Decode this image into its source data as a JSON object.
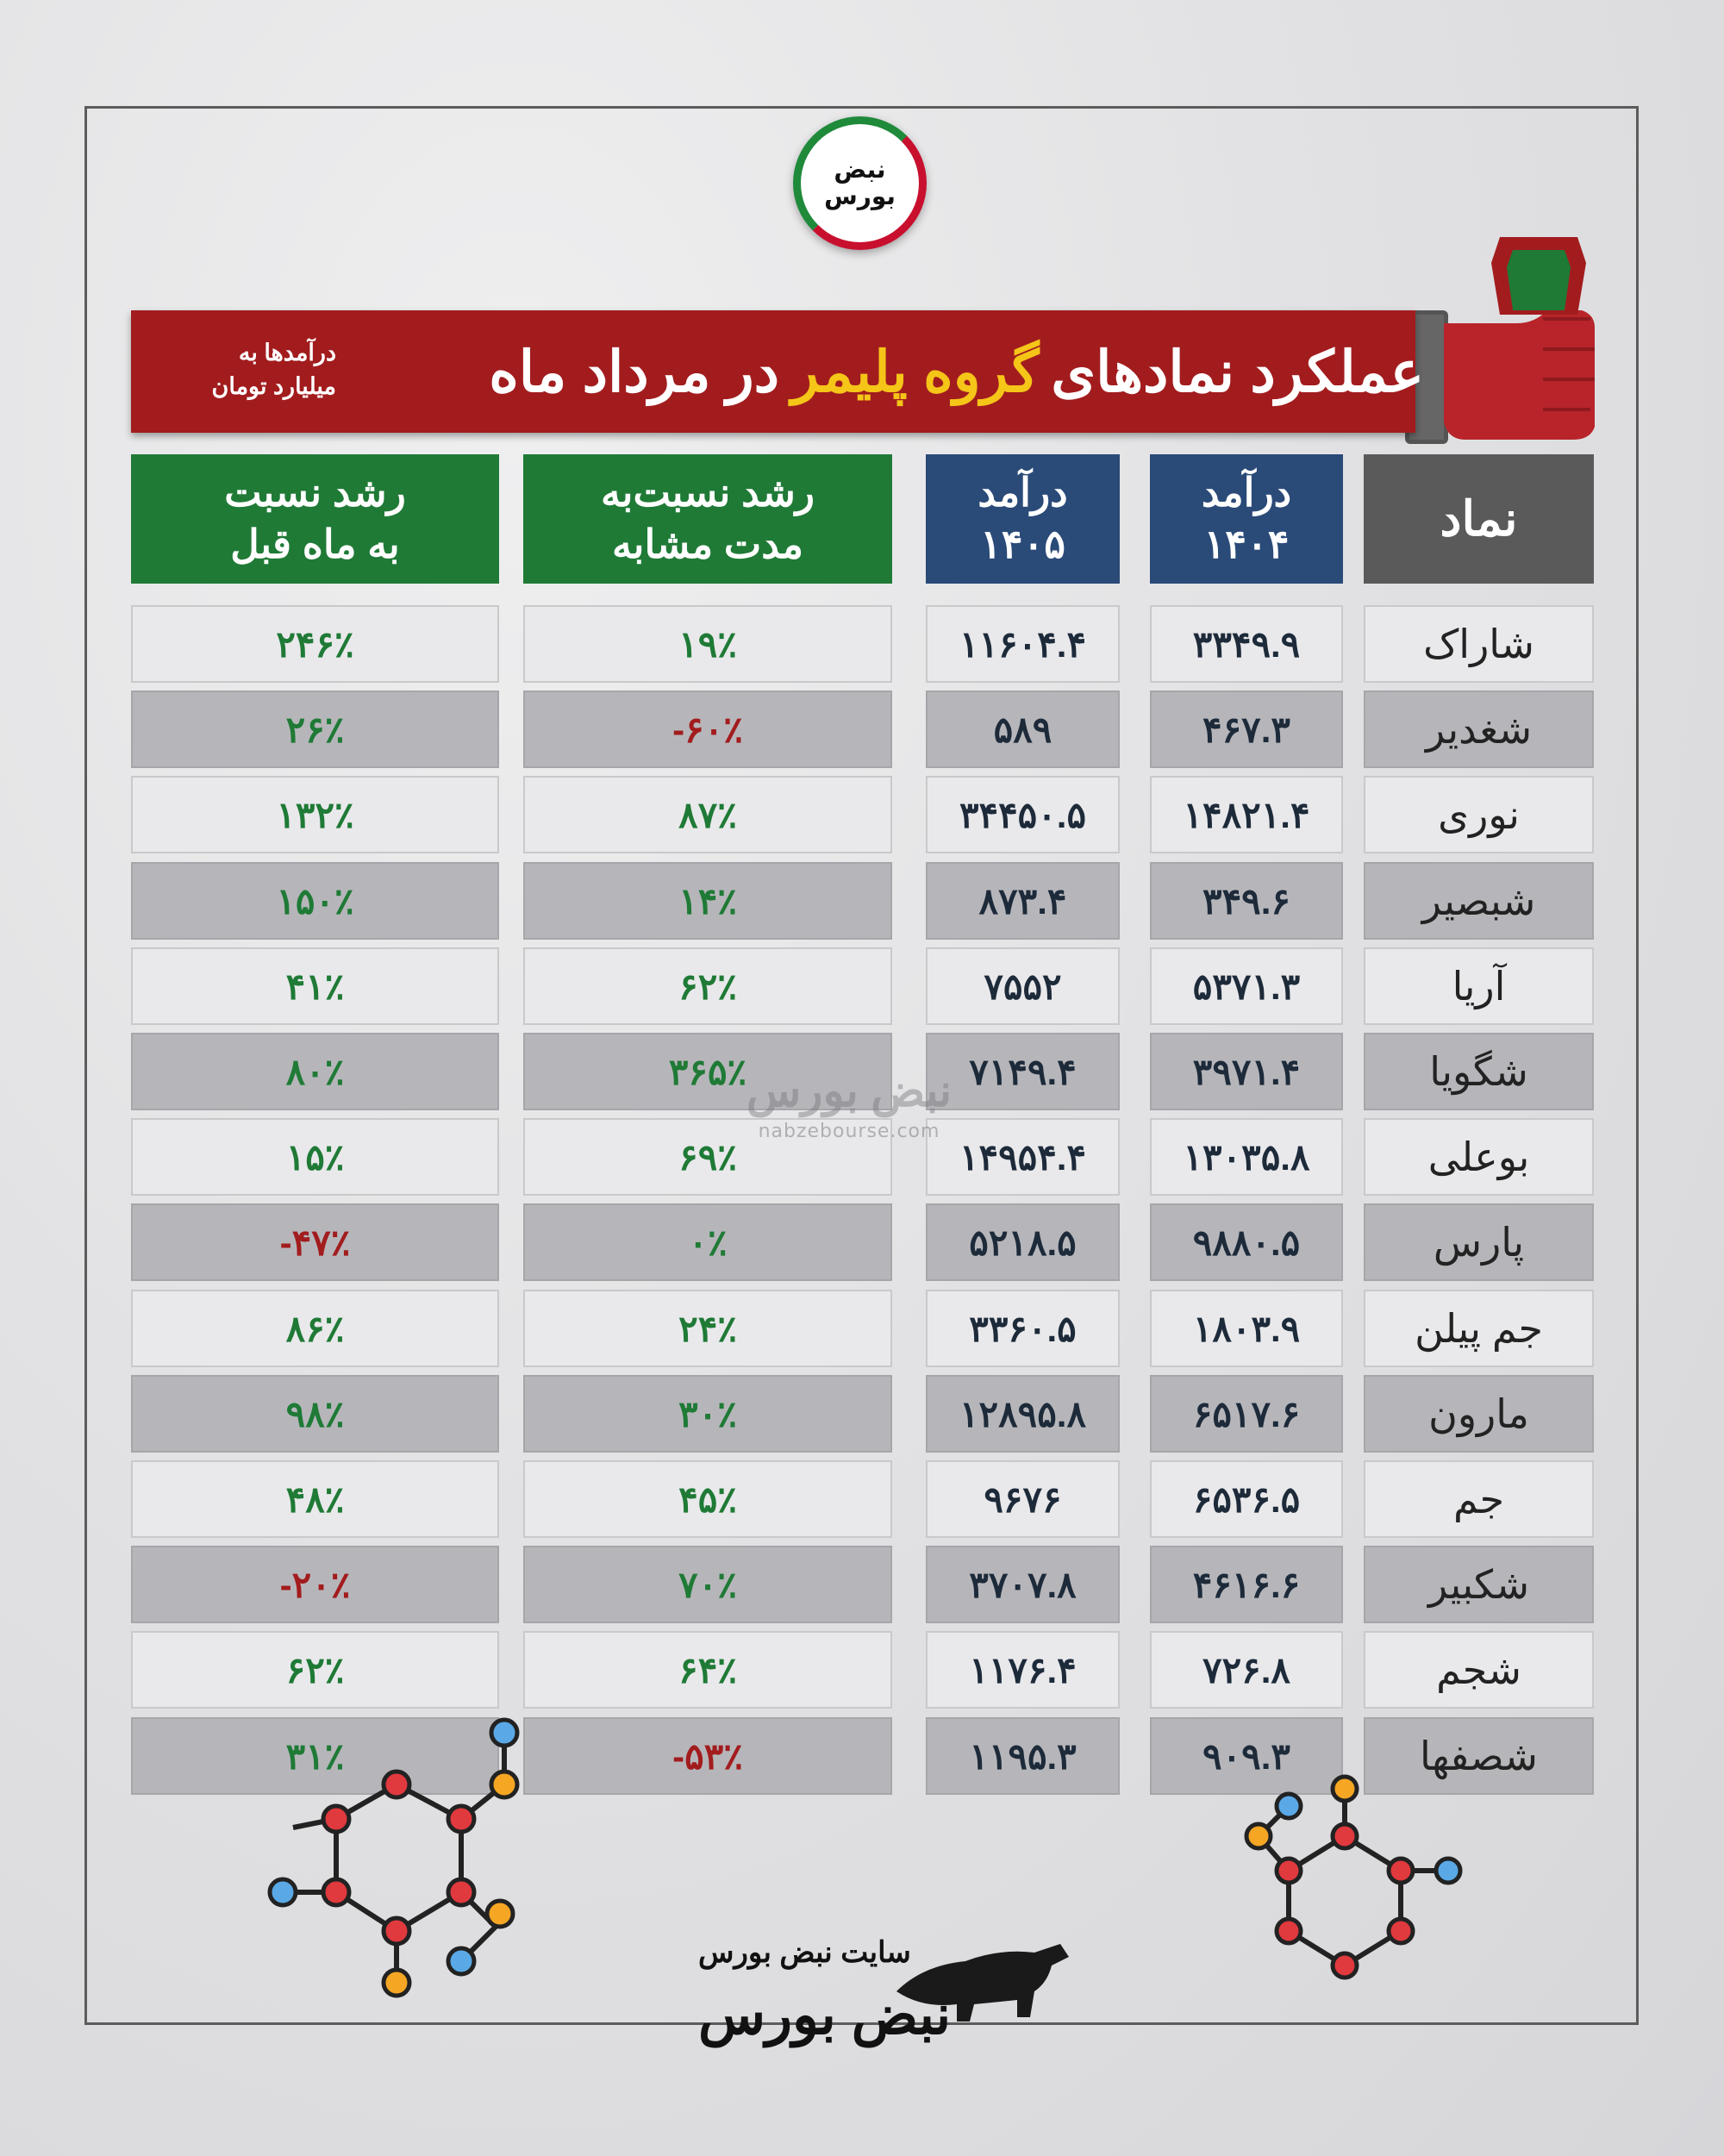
{
  "logo": {
    "line1": "نبض",
    "line2": "بورس"
  },
  "banner": {
    "unit_line1": "درآمدها به",
    "unit_line2": "میلیارد تومان",
    "title_start": "عملکرد نمادهای",
    "title_highlight": "گروه پلیمر",
    "title_end": "در مرداد ماه"
  },
  "headers": {
    "mom_line1": "رشد نسبت",
    "mom_line2": "به ماه قبل",
    "yoy_line1": "رشد نسبت‌به",
    "yoy_line2": "مدت مشابه",
    "rev1405_line1": "درآمد",
    "rev1405_line2": "۱۴۰۵",
    "rev1404_line1": "درآمد",
    "rev1404_line2": "۱۴۰۴",
    "symbol": "نماد"
  },
  "rows": [
    {
      "symbol": "شاراک",
      "rev1404": "۳۳۴۹.۹",
      "rev1405": "۱۱۶۰۴.۴",
      "yoy": "۱۹٪",
      "mom": "۲۴۶٪",
      "yoy_neg": false,
      "mom_neg": false
    },
    {
      "symbol": "شغدیر",
      "rev1404": "۴۶۷.۳",
      "rev1405": "۵۸۹",
      "yoy": "-۶۰٪",
      "mom": "۲۶٪",
      "yoy_neg": true,
      "mom_neg": false
    },
    {
      "symbol": "نوری",
      "rev1404": "۱۴۸۲۱.۴",
      "rev1405": "۳۴۴۵۰.۵",
      "yoy": "۸۷٪",
      "mom": "۱۳۲٪",
      "yoy_neg": false,
      "mom_neg": false
    },
    {
      "symbol": "شبصیر",
      "rev1404": "۳۴۹.۶",
      "rev1405": "۸۷۳.۴",
      "yoy": "۱۴٪",
      "mom": "۱۵۰٪",
      "yoy_neg": false,
      "mom_neg": false
    },
    {
      "symbol": "آریا",
      "rev1404": "۵۳۷۱.۳",
      "rev1405": "۷۵۵۲",
      "yoy": "۶۲٪",
      "mom": "۴۱٪",
      "yoy_neg": false,
      "mom_neg": false
    },
    {
      "symbol": "شگویا",
      "rev1404": "۳۹۷۱.۴",
      "rev1405": "۷۱۴۹.۴",
      "yoy": "۳۶۵٪",
      "mom": "۸۰٪",
      "yoy_neg": false,
      "mom_neg": false
    },
    {
      "symbol": "بوعلی",
      "rev1404": "۱۳۰۳۵.۸",
      "rev1405": "۱۴۹۵۴.۴",
      "yoy": "۶۹٪",
      "mom": "۱۵٪",
      "yoy_neg": false,
      "mom_neg": false
    },
    {
      "symbol": "پارس",
      "rev1404": "۹۸۸۰.۵",
      "rev1405": "۵۲۱۸.۵",
      "yoy": "۰٪",
      "mom": "-۴۷٪",
      "yoy_neg": false,
      "mom_neg": true
    },
    {
      "symbol": "جم پیلن",
      "rev1404": "۱۸۰۳.۹",
      "rev1405": "۳۳۶۰.۵",
      "yoy": "۲۴٪",
      "mom": "۸۶٪",
      "yoy_neg": false,
      "mom_neg": false
    },
    {
      "symbol": "مارون",
      "rev1404": "۶۵۱۷.۶",
      "rev1405": "۱۲۸۹۵.۸",
      "yoy": "۳۰٪",
      "mom": "۹۸٪",
      "yoy_neg": false,
      "mom_neg": false
    },
    {
      "symbol": "جم",
      "rev1404": "۶۵۳۶.۵",
      "rev1405": "۹۶۷۶",
      "yoy": "۴۵٪",
      "mom": "۴۸٪",
      "yoy_neg": false,
      "mom_neg": false
    },
    {
      "symbol": "شکبیر",
      "rev1404": "۴۶۱۶.۶",
      "rev1405": "۳۷۰۷.۸",
      "yoy": "۷۰٪",
      "mom": "-۲۰٪",
      "yoy_neg": false,
      "mom_neg": true
    },
    {
      "symbol": "شجم",
      "rev1404": "۷۲۶.۸",
      "rev1405": "۱۱۷۶.۴",
      "yoy": "۶۴٪",
      "mom": "۶۲٪",
      "yoy_neg": false,
      "mom_neg": false
    },
    {
      "symbol": "شصفها",
      "rev1404": "۹۰۹.۳",
      "rev1405": "۱۱۹۵.۳",
      "yoy": "-۵۳٪",
      "mom": "۳۱٪",
      "yoy_neg": true,
      "mom_neg": false
    }
  ],
  "watermark": {
    "brand": "نبض بورس",
    "url": "nabzebourse.com"
  },
  "footer": {
    "site_label": "سایت نبض بورس",
    "brand": "نبض بورس"
  },
  "colors": {
    "banner_red": "#a21c1e",
    "highlight_yellow": "#f5c518",
    "header_green": "#1f7a36",
    "header_blue": "#2a4a78",
    "header_grey": "#5a5a5a"
  }
}
